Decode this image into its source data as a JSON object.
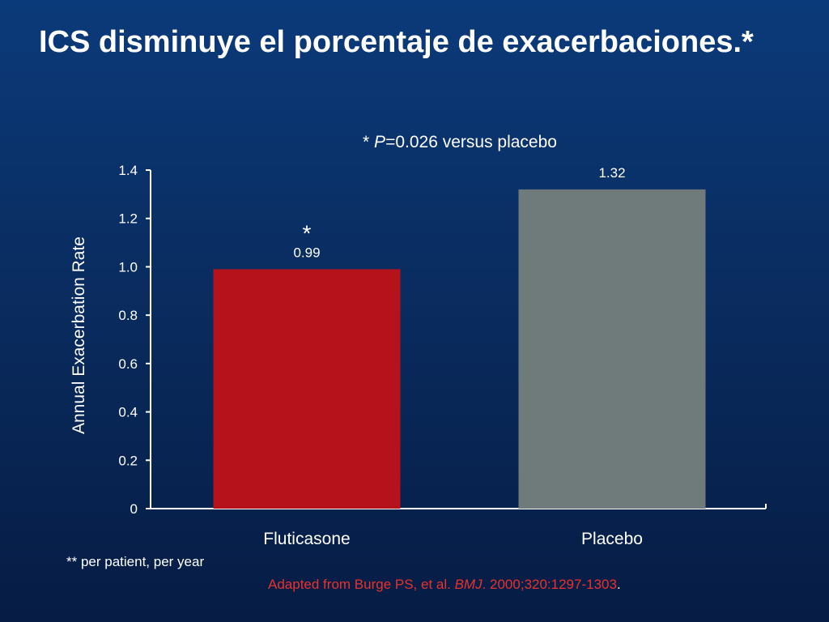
{
  "slide": {
    "title": "ICS disminuye el porcentaje de exacerbaciones.*",
    "p_note": {
      "prefix": "* ",
      "p_symbol": "P",
      "text": "=0.026 versus placebo"
    },
    "footnote": "** per patient, per year",
    "source": {
      "prefix": "Adapted  from Burge PS, et al. ",
      "journal": "BMJ",
      "suffix": ". 2000;320:1297-1303",
      "end": "."
    }
  },
  "chart_data": {
    "type": "bar",
    "categories": [
      "Fluticasone",
      "Placebo"
    ],
    "values": [
      0.99,
      1.32
    ],
    "value_labels": [
      "0.99",
      "1.32"
    ],
    "markers": [
      "*",
      ""
    ],
    "colors": [
      "#b5121b",
      "#6f7a7b"
    ],
    "ylabel": "Annual Exacerbation Rate",
    "ylim": [
      0,
      1.4
    ],
    "yticks": [
      {
        "value": 0,
        "label": "0"
      },
      {
        "value": 0.2,
        "label": "0.2"
      },
      {
        "value": 0.4,
        "label": "0.4"
      },
      {
        "value": 0.6,
        "label": "0.6"
      },
      {
        "value": 0.8,
        "label": "0.8"
      },
      {
        "value": 1.0,
        "label": "1.0"
      },
      {
        "value": 1.2,
        "label": "1.2"
      },
      {
        "value": 1.4,
        "label": "1.4"
      }
    ],
    "grid": false,
    "legend": "none"
  }
}
